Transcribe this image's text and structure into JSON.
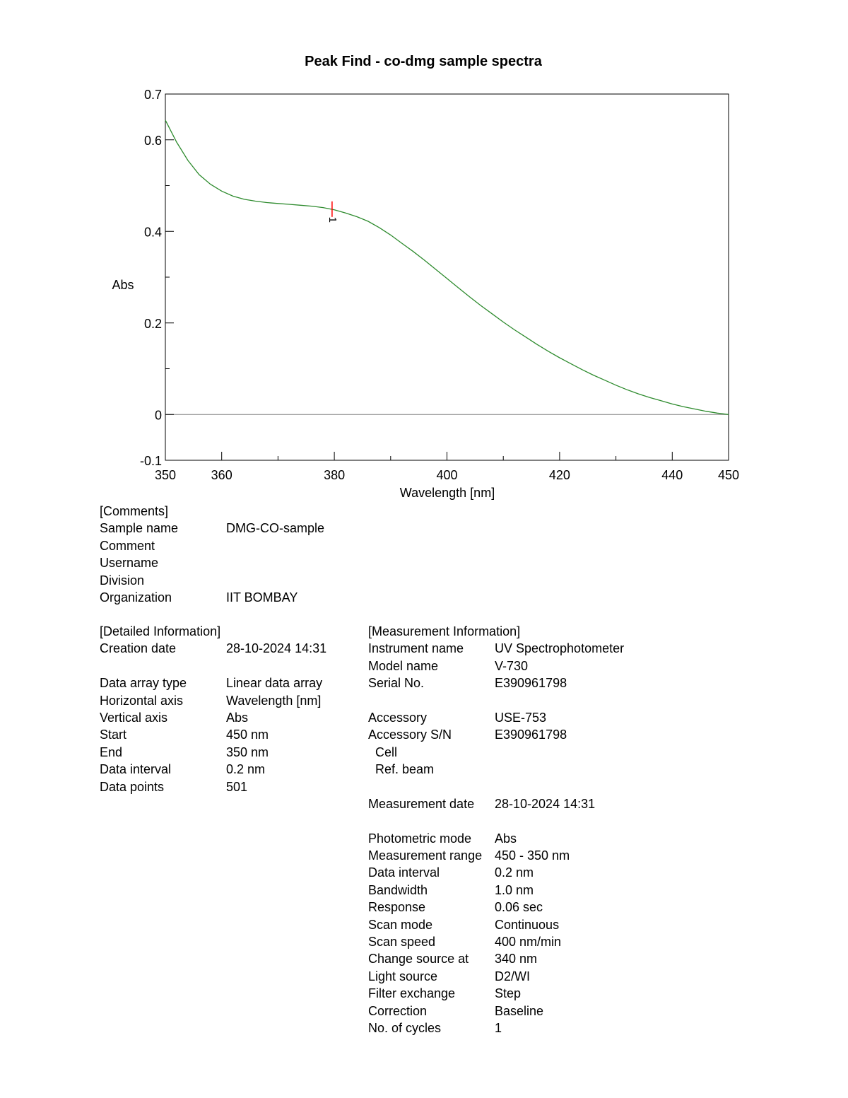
{
  "chart_data": {
    "type": "line",
    "title": "Peak Find - co-dmg sample spectra",
    "xlabel": "Wavelength [nm]",
    "ylabel": "Abs",
    "xlim": [
      350,
      450
    ],
    "ylim": [
      -0.1,
      0.7
    ],
    "x_ticks": [
      350,
      360,
      380,
      400,
      420,
      440,
      450
    ],
    "y_ticks": [
      -0.1,
      0,
      0.2,
      0.4,
      0.6,
      0.7
    ],
    "x_tick_labels": [
      "350",
      "360",
      "380",
      "400",
      "420",
      "440",
      "450"
    ],
    "y_tick_labels": [
      "-0.1",
      "0",
      "0.2",
      "0.4",
      "0.6",
      "0.7"
    ],
    "grid": false,
    "series_color": "#2e8b2e",
    "baseline_color": "#808080",
    "marker_color": "#ff0000",
    "series": [
      {
        "x": [
          350,
          352,
          354,
          356,
          358,
          360,
          362,
          364,
          366,
          368,
          370,
          372,
          374,
          376,
          378,
          380,
          382,
          384,
          386,
          388,
          390,
          392,
          394,
          396,
          398,
          400,
          402,
          404,
          406,
          408,
          410,
          412,
          414,
          416,
          418,
          420,
          422,
          424,
          426,
          428,
          430,
          432,
          434,
          436,
          438,
          440,
          442,
          444,
          446,
          448,
          450
        ],
        "y": [
          0.643,
          0.595,
          0.555,
          0.524,
          0.503,
          0.488,
          0.477,
          0.47,
          0.466,
          0.463,
          0.461,
          0.459,
          0.457,
          0.455,
          0.452,
          0.447,
          0.44,
          0.432,
          0.422,
          0.408,
          0.392,
          0.374,
          0.356,
          0.337,
          0.317,
          0.297,
          0.277,
          0.257,
          0.238,
          0.22,
          0.202,
          0.185,
          0.169,
          0.153,
          0.138,
          0.124,
          0.111,
          0.098,
          0.086,
          0.075,
          0.064,
          0.054,
          0.045,
          0.037,
          0.03,
          0.023,
          0.017,
          0.012,
          0.007,
          0.003,
          0.0
        ]
      }
    ],
    "peaks": [
      {
        "label": "1",
        "x": 379.6,
        "y": 0.447
      }
    ]
  },
  "comments": {
    "header": "[Comments]",
    "rows": [
      {
        "label": "Sample name",
        "value": "DMG-CO-sample"
      },
      {
        "label": "Comment",
        "value": ""
      },
      {
        "label": "Username",
        "value": ""
      },
      {
        "label": "Division",
        "value": ""
      },
      {
        "label": "Organization",
        "value": "IIT BOMBAY"
      }
    ]
  },
  "detailed": {
    "header": "[Detailed Information]",
    "rows": [
      {
        "label": "Creation date",
        "value": "28-10-2024 14:31"
      },
      {
        "label": "",
        "value": ""
      },
      {
        "label": "Data array type",
        "value": "Linear data array"
      },
      {
        "label": "Horizontal axis",
        "value": "Wavelength [nm]"
      },
      {
        "label": "Vertical axis",
        "value": "Abs"
      },
      {
        "label": "Start",
        "value": "450 nm"
      },
      {
        "label": "End",
        "value": "350 nm"
      },
      {
        "label": "Data interval",
        "value": "0.2 nm"
      },
      {
        "label": "Data points",
        "value": "501"
      }
    ]
  },
  "measurement": {
    "header": "[Measurement Information]",
    "rows": [
      {
        "label": "Instrument name",
        "value": "UV Spectrophotometer"
      },
      {
        "label": "Model name",
        "value": "V-730"
      },
      {
        "label": "Serial No.",
        "value": "E390961798"
      },
      {
        "label": "",
        "value": ""
      },
      {
        "label": "Accessory",
        "value": "USE-753"
      },
      {
        "label": "Accessory S/N",
        "value": "E390961798"
      },
      {
        "label": "  Cell",
        "value": ""
      },
      {
        "label": "  Ref. beam",
        "value": ""
      },
      {
        "label": "",
        "value": ""
      },
      {
        "label": "Measurement date",
        "value": "28-10-2024 14:31"
      },
      {
        "label": "",
        "value": ""
      },
      {
        "label": "Photometric mode",
        "value": "Abs"
      },
      {
        "label": "Measurement range",
        "value": "450 - 350 nm"
      },
      {
        "label": "Data interval",
        "value": "0.2 nm"
      },
      {
        "label": "Bandwidth",
        "value": "1.0 nm"
      },
      {
        "label": "Response",
        "value": "0.06 sec"
      },
      {
        "label": "Scan mode",
        "value": "Continuous"
      },
      {
        "label": "Scan speed",
        "value": "400 nm/min"
      },
      {
        "label": "Change source at",
        "value": "340 nm"
      },
      {
        "label": "Light source",
        "value": "D2/WI"
      },
      {
        "label": "Filter exchange",
        "value": "Step"
      },
      {
        "label": "Correction",
        "value": "Baseline"
      },
      {
        "label": "No. of cycles",
        "value": "1"
      }
    ]
  }
}
